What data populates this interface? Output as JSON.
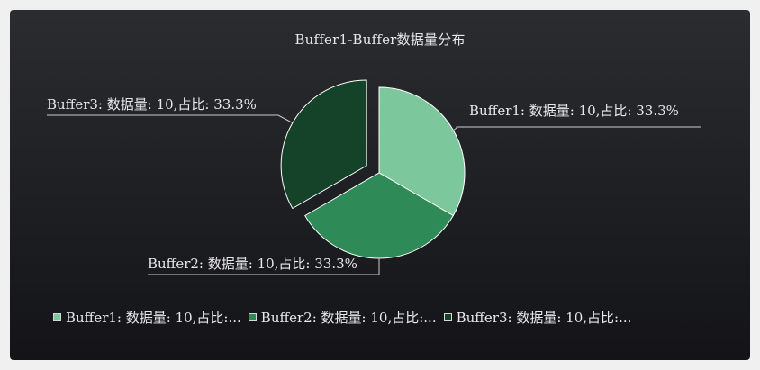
{
  "chart_data": {
    "type": "pie",
    "title": "Buffer1-Buffer数据量分布",
    "slices": [
      {
        "name": "Buffer1",
        "value": 10,
        "percent": 33.3,
        "color": "#7cc79b",
        "label": "Buffer1: 数据量: 10,占比: 33.3%",
        "exploded": false
      },
      {
        "name": "Buffer2",
        "value": 10,
        "percent": 33.3,
        "color": "#2e8b57",
        "label": "Buffer2: 数据量: 10,占比: 33.3%",
        "exploded": false
      },
      {
        "name": "Buffer3",
        "value": 10,
        "percent": 33.3,
        "color": "#14432a",
        "label": "Buffer3: 数据量: 10,占比: 33.3%",
        "exploded": true
      }
    ],
    "legend": {
      "placement": "bottom",
      "items": [
        "Buffer1: 数据量: 10,占比:...",
        "Buffer2: 数据量: 10,占比:...",
        "Buffer3: 数据量: 10,占比:..."
      ]
    }
  },
  "colors": {
    "background": "#1e1f23",
    "text": "#e8e8e8",
    "slice_border": "#ffffff",
    "leader_line": "#cccccc"
  }
}
